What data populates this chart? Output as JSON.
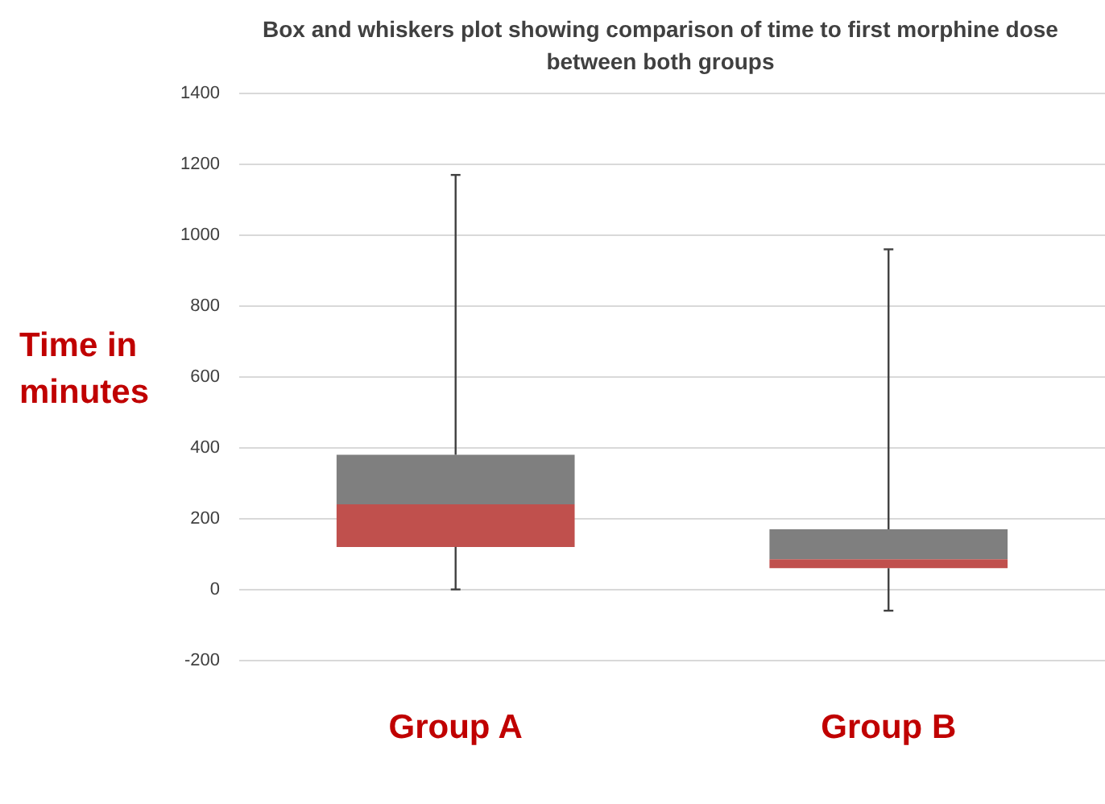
{
  "chart_data": {
    "type": "box",
    "title": "Box and whiskers plot showing comparison of time to first morphine dose between both groups",
    "ylabel": "Time in minutes",
    "categories": [
      "Group A",
      "Group B"
    ],
    "series": [
      {
        "color": "#7f7f7f",
        "colors": [
          "#c0504d",
          "#c0504d"
        ],
        "boxes": [
          {
            "low": 0,
            "q1": 120,
            "median": 240,
            "q3": 380,
            "high": 1170
          },
          {
            "low": -60,
            "q1": 60,
            "median": 85,
            "q3": 170,
            "high": 960
          }
        ]
      }
    ],
    "ylim": [
      -200,
      1400
    ],
    "yticks": [
      -200,
      0,
      200,
      400,
      600,
      800,
      1000,
      1200,
      1400
    ],
    "grid": "y",
    "legend": false
  }
}
